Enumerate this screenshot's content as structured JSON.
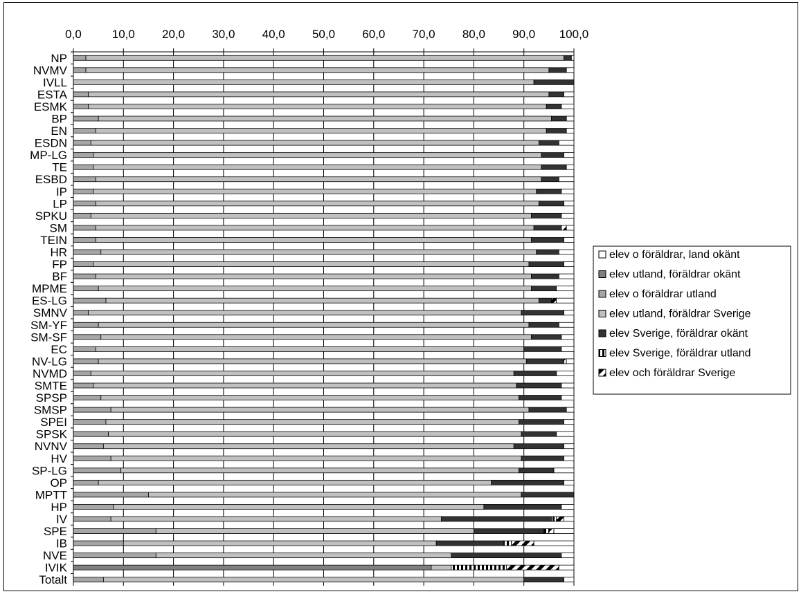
{
  "chart_data": {
    "type": "bar",
    "orientation": "horizontal",
    "stacked": true,
    "xlim": [
      0,
      100
    ],
    "x_ticks": [
      "0,0",
      "10,0",
      "20,0",
      "30,0",
      "40,0",
      "50,0",
      "60,0",
      "70,0",
      "80,0",
      "90,0",
      "100,0"
    ],
    "x_axis_position": "top",
    "grid": "vertical",
    "legend_position": "right",
    "categories": [
      "NP",
      "NVMV",
      "IVLL",
      "ESTA",
      "ESMK",
      "BP",
      "EN",
      "ESDN",
      "MP-LG",
      "TE",
      "ESBD",
      "IP",
      "LP",
      "SPKU",
      "SM",
      "TEIN",
      "HR",
      "FP",
      "BF",
      "MPME",
      "ES-LG",
      "SMNV",
      "SM-YF",
      "SM-SF",
      "EC",
      "NV-LG",
      "NVMD",
      "SMTE",
      "SPSP",
      "SMSP",
      "SPEI",
      "SPSK",
      "NVNV",
      "HV",
      "SP-LG",
      "OP",
      "MPTT",
      "HP",
      "IV",
      "SPE",
      "IB",
      "NVE",
      "IVIK",
      "Totalt"
    ],
    "series": [
      {
        "name": "elev o föräldrar, land okänt",
        "color": "#ffffff",
        "pattern": "none",
        "values": [
          0,
          0,
          0,
          0,
          0,
          0,
          0,
          0,
          0,
          0,
          0,
          0,
          0,
          0,
          0,
          0,
          0,
          0,
          0,
          0,
          0,
          0,
          0,
          0,
          0,
          0,
          0,
          0,
          0,
          0,
          0,
          0,
          0,
          0,
          0,
          0,
          0,
          0,
          0,
          0,
          0,
          0,
          0,
          0
        ]
      },
      {
        "name": "elev utland, föräldrar okänt",
        "color": "#808080",
        "pattern": "none",
        "values": [
          0,
          0,
          0,
          0,
          0,
          0,
          0,
          0,
          0,
          0,
          0,
          0,
          0,
          0,
          0,
          0,
          0,
          0,
          0,
          0,
          0,
          0,
          0,
          0,
          0,
          0,
          0,
          0,
          0,
          0,
          0,
          0,
          0,
          0,
          0,
          0,
          0,
          0,
          0,
          0,
          0,
          0,
          71.5,
          0
        ]
      },
      {
        "name": "elev o föräldrar utland",
        "color": "#a6a6a6",
        "pattern": "none",
        "values": [
          2.5,
          2.5,
          0,
          3.0,
          3.0,
          5.0,
          4.5,
          3.5,
          4.0,
          4.0,
          4.5,
          4.0,
          4.5,
          3.5,
          4.5,
          4.5,
          5.5,
          4.0,
          4.5,
          5.0,
          6.5,
          3.0,
          5.0,
          5.5,
          4.5,
          5.0,
          3.5,
          4.0,
          5.5,
          7.5,
          6.5,
          7.0,
          6.0,
          7.5,
          9.5,
          5.0,
          15.0,
          8.0,
          7.5,
          16.5,
          10.0,
          16.5,
          0,
          6.0
        ]
      },
      {
        "name": "elev utland, föräldrar Sverige",
        "color": "#c0c0c0",
        "pattern": "none",
        "values": [
          95.5,
          92.5,
          92.0,
          92.0,
          91.5,
          90.5,
          90.0,
          89.5,
          89.5,
          89.5,
          89.0,
          88.5,
          88.5,
          88.0,
          87.5,
          87.0,
          87.0,
          87.0,
          87.0,
          86.5,
          86.5,
          86.5,
          86.0,
          86.0,
          85.5,
          85.5,
          84.5,
          84.5,
          83.5,
          83.5,
          82.5,
          82.5,
          82.0,
          82.0,
          79.5,
          78.5,
          74.5,
          74.0,
          66.0,
          63.5,
          62.5,
          59.0,
          4.0,
          84.0
        ]
      },
      {
        "name": "elev Sverige, föräldrar okänt",
        "color": "#333333",
        "pattern": "none",
        "values": [
          1.5,
          3.5,
          8.0,
          3.0,
          3.0,
          3.0,
          4.0,
          4.0,
          4.5,
          5.0,
          3.5,
          5.0,
          5.0,
          6.0,
          5.5,
          6.5,
          4.5,
          7.0,
          5.5,
          5.0,
          2.5,
          8.5,
          6.0,
          6.0,
          7.5,
          7.5,
          8.5,
          9.0,
          8.5,
          7.5,
          9.0,
          7.0,
          10.0,
          8.5,
          7.0,
          14.5,
          10.5,
          15.5,
          22.0,
          14.0,
          13.5,
          22.0,
          0,
          8.0
        ]
      },
      {
        "name": "elev Sverige, föräldrar utland",
        "color": "#ffffff",
        "pattern": "vstripe",
        "values": [
          0,
          0,
          0,
          0,
          0,
          0,
          0,
          0,
          0,
          0,
          0,
          0,
          0,
          0,
          0,
          0,
          0,
          0,
          0,
          0,
          0,
          0,
          0,
          0,
          0,
          0,
          0,
          0,
          0,
          0,
          0,
          0,
          0,
          0,
          0,
          0,
          0,
          0,
          1.0,
          1.0,
          1.5,
          0,
          11.0,
          0
        ]
      },
      {
        "name": "elev och föräldrar Sverige",
        "color": "#000000",
        "pattern": "diag",
        "values": [
          0,
          0,
          0,
          0,
          0,
          0,
          0,
          0,
          0,
          0,
          0,
          0,
          0,
          0,
          1.0,
          0,
          0,
          0,
          0,
          0,
          1.0,
          0,
          0,
          0,
          0,
          0.5,
          0,
          0,
          0,
          0,
          0,
          0,
          0,
          0,
          0,
          0,
          0,
          0,
          1.5,
          1.0,
          4.5,
          0,
          10.5,
          0
        ]
      }
    ]
  }
}
